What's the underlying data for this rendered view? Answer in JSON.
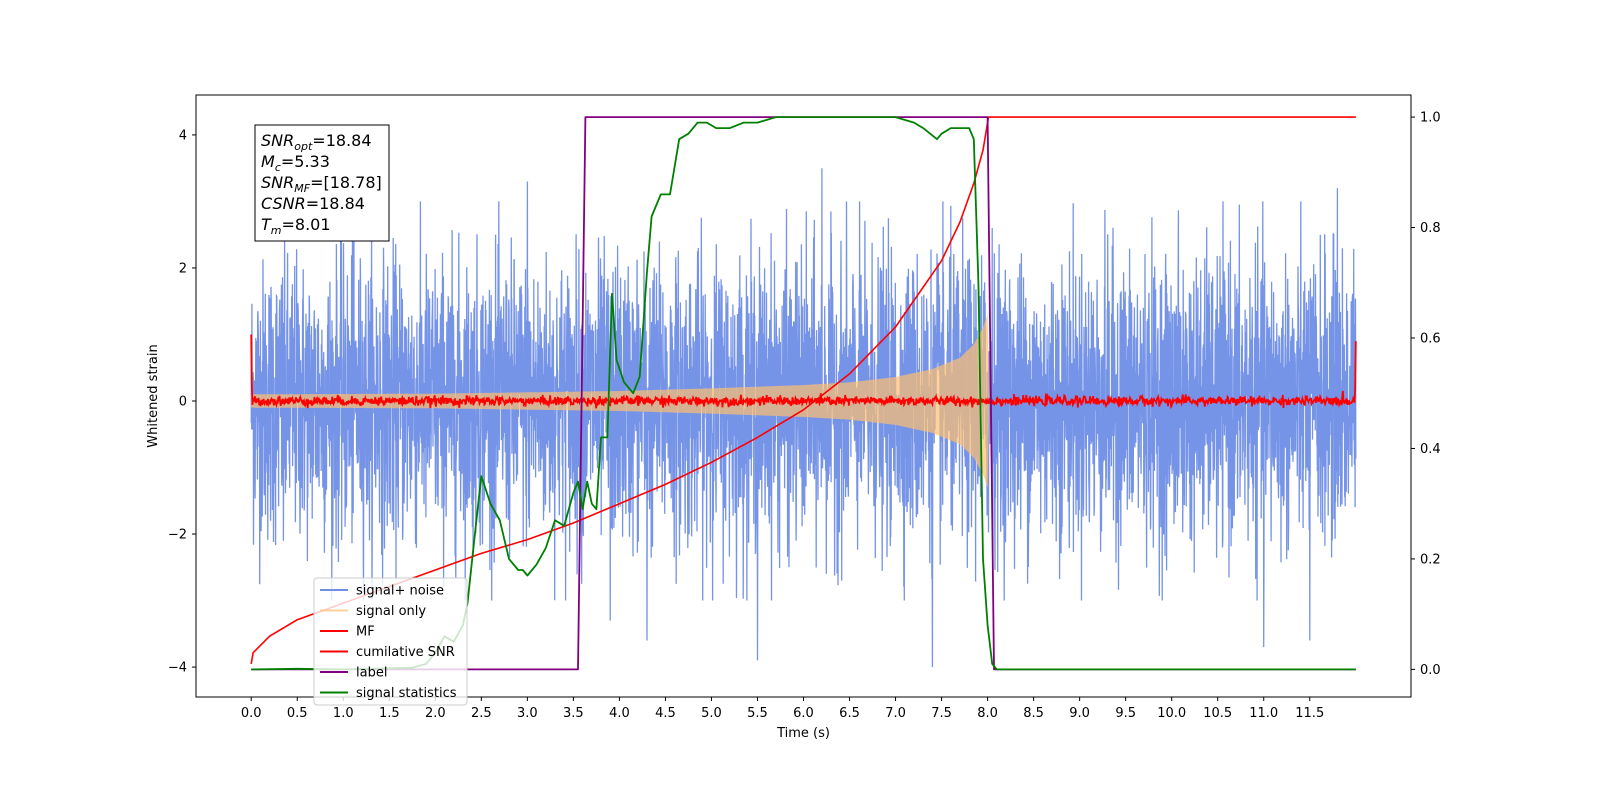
{
  "chart_data": {
    "type": "line",
    "xlabel": "Time (s)",
    "ylabel": "Whitened strain",
    "xlim": [
      -0.6,
      12.6
    ],
    "ylim": [
      -4.45,
      4.6
    ],
    "y2lim": [
      -0.05,
      1.04
    ],
    "x_ticks": [
      0.0,
      0.5,
      1.0,
      1.5,
      2.0,
      2.5,
      3.0,
      3.5,
      4.0,
      4.5,
      5.0,
      5.5,
      6.0,
      6.5,
      7.0,
      7.5,
      8.0,
      8.5,
      9.0,
      9.5,
      10.0,
      10.5,
      11.0,
      11.5
    ],
    "x_tick_labels": [
      "0.0",
      "0.5",
      "1.0",
      "1.5",
      "2.0",
      "2.5",
      "3.0",
      "3.5",
      "4.0",
      "4.5",
      "5.0",
      "5.5",
      "6.0",
      "6.5",
      "7.0",
      "7.5",
      "8.0",
      "8.5",
      "9.0",
      "9.5",
      "10.0",
      "10.5",
      "11.0",
      "11.5"
    ],
    "y_ticks": [
      -4,
      -2,
      0,
      2,
      4
    ],
    "y_tick_labels": [
      "−4",
      "−2",
      "0",
      "2",
      "4"
    ],
    "y2_ticks": [
      0.0,
      0.2,
      0.4,
      0.6,
      0.8,
      1.0
    ],
    "y2_tick_labels": [
      "0.0",
      "0.2",
      "0.4",
      "0.6",
      "0.8",
      "1.0"
    ],
    "legend_position": "lower-left",
    "grid": false,
    "series": [
      {
        "name": "signal+ noise",
        "key": "noise",
        "color": "#6f8ee6",
        "axis": "left",
        "description_values": {
          "x_range": [
            0.0,
            12.0
          ],
          "typical_min": -2.0,
          "typical_max": 2.0,
          "spikes": [
            [
              0.35,
              -2.1
            ],
            [
              1.1,
              3.1
            ],
            [
              3.0,
              3.3
            ],
            [
              3.9,
              -3.3
            ],
            [
              4.3,
              -3.6
            ],
            [
              5.5,
              -3.9
            ],
            [
              6.2,
              3.5
            ],
            [
              7.4,
              -4.0
            ],
            [
              8.05,
              2.6
            ],
            [
              11.0,
              4.1
            ],
            [
              11.0,
              -3.7
            ],
            [
              11.5,
              -3.6
            ],
            [
              11.8,
              3.2
            ]
          ]
        }
      },
      {
        "name": "signal only",
        "key": "signal",
        "color": "#ffbf70",
        "axis": "left",
        "envelope": [
          [
            0.0,
            0.1
          ],
          [
            2.0,
            0.11
          ],
          [
            4.0,
            0.15
          ],
          [
            5.0,
            0.19
          ],
          [
            6.0,
            0.24
          ],
          [
            6.5,
            0.28
          ],
          [
            7.0,
            0.36
          ],
          [
            7.4,
            0.48
          ],
          [
            7.7,
            0.65
          ],
          [
            7.85,
            0.85
          ],
          [
            7.95,
            1.1
          ],
          [
            8.0,
            1.3
          ],
          [
            8.02,
            0.0
          ]
        ]
      },
      {
        "name": "MF",
        "key": "mf",
        "color": "#ff0000",
        "axis": "left",
        "description_values": {
          "x_range": [
            0.0,
            12.0
          ],
          "level": 0.0,
          "start_value": 1.0,
          "end_value": 0.9
        }
      },
      {
        "name": "cumilative SNR",
        "key": "csnr",
        "color": "#ff0000",
        "axis": "right",
        "x": [
          0.0,
          0.02,
          0.2,
          0.5,
          1.0,
          1.5,
          2.0,
          2.5,
          3.0,
          3.5,
          4.0,
          4.5,
          5.0,
          5.5,
          6.0,
          6.5,
          7.0,
          7.5,
          7.7,
          7.85,
          7.95,
          8.01,
          8.02,
          12.0
        ],
        "y": [
          0.01,
          0.03,
          0.06,
          0.09,
          0.12,
          0.15,
          0.18,
          0.21,
          0.235,
          0.265,
          0.3,
          0.335,
          0.375,
          0.42,
          0.47,
          0.535,
          0.62,
          0.74,
          0.81,
          0.88,
          0.94,
          1.0,
          1.0,
          1.0
        ]
      },
      {
        "name": "label",
        "key": "label",
        "color": "#800080",
        "axis": "right",
        "x": [
          0.0,
          3.55,
          3.63,
          8.0,
          8.07,
          12.0
        ],
        "y": [
          0.0,
          0.0,
          1.0,
          1.0,
          0.0,
          0.0
        ]
      },
      {
        "name": "signal statistics",
        "key": "stats",
        "color": "#008000",
        "axis": "right",
        "x": [
          0.0,
          0.5,
          1.0,
          1.5,
          1.75,
          1.9,
          2.0,
          2.1,
          2.2,
          2.3,
          2.35,
          2.42,
          2.5,
          2.6,
          2.7,
          2.8,
          2.9,
          2.95,
          3.0,
          3.1,
          3.2,
          3.3,
          3.4,
          3.5,
          3.55,
          3.6,
          3.65,
          3.7,
          3.75,
          3.8,
          3.87,
          3.92,
          3.97,
          4.05,
          4.15,
          4.22,
          4.3,
          4.35,
          4.45,
          4.55,
          4.65,
          4.75,
          4.85,
          4.95,
          5.05,
          5.2,
          5.35,
          5.5,
          5.7,
          6.0,
          6.5,
          7.0,
          7.2,
          7.3,
          7.45,
          7.5,
          7.6,
          7.7,
          7.8,
          7.85,
          7.9,
          7.95,
          8.0,
          8.05,
          8.1,
          12.0
        ],
        "y": [
          0.0,
          0.001,
          0.0,
          0.002,
          0.003,
          0.01,
          0.03,
          0.06,
          0.05,
          0.08,
          0.12,
          0.23,
          0.35,
          0.3,
          0.27,
          0.2,
          0.18,
          0.18,
          0.17,
          0.19,
          0.22,
          0.27,
          0.26,
          0.32,
          0.34,
          0.29,
          0.34,
          0.3,
          0.29,
          0.42,
          0.42,
          0.68,
          0.56,
          0.52,
          0.5,
          0.53,
          0.72,
          0.82,
          0.86,
          0.86,
          0.96,
          0.97,
          0.99,
          0.99,
          0.98,
          0.98,
          0.99,
          0.99,
          1.0,
          1.0,
          1.0,
          1.0,
          0.99,
          0.98,
          0.96,
          0.97,
          0.98,
          0.98,
          0.98,
          0.96,
          0.7,
          0.2,
          0.08,
          0.01,
          0.0,
          0.0
        ]
      }
    ],
    "annotation": {
      "lines": [
        {
          "base": "SNR",
          "sub": "opt",
          "rest": "=18.84"
        },
        {
          "base": "M",
          "sub": "c",
          "rest": "=5.33"
        },
        {
          "base": "SNR",
          "sub": "MF",
          "rest": "=[18.78]"
        },
        {
          "base": "CSNR",
          "sub": "",
          "rest": "=18.84"
        },
        {
          "base": "T",
          "sub": "m",
          "rest": "=8.01"
        }
      ]
    }
  }
}
